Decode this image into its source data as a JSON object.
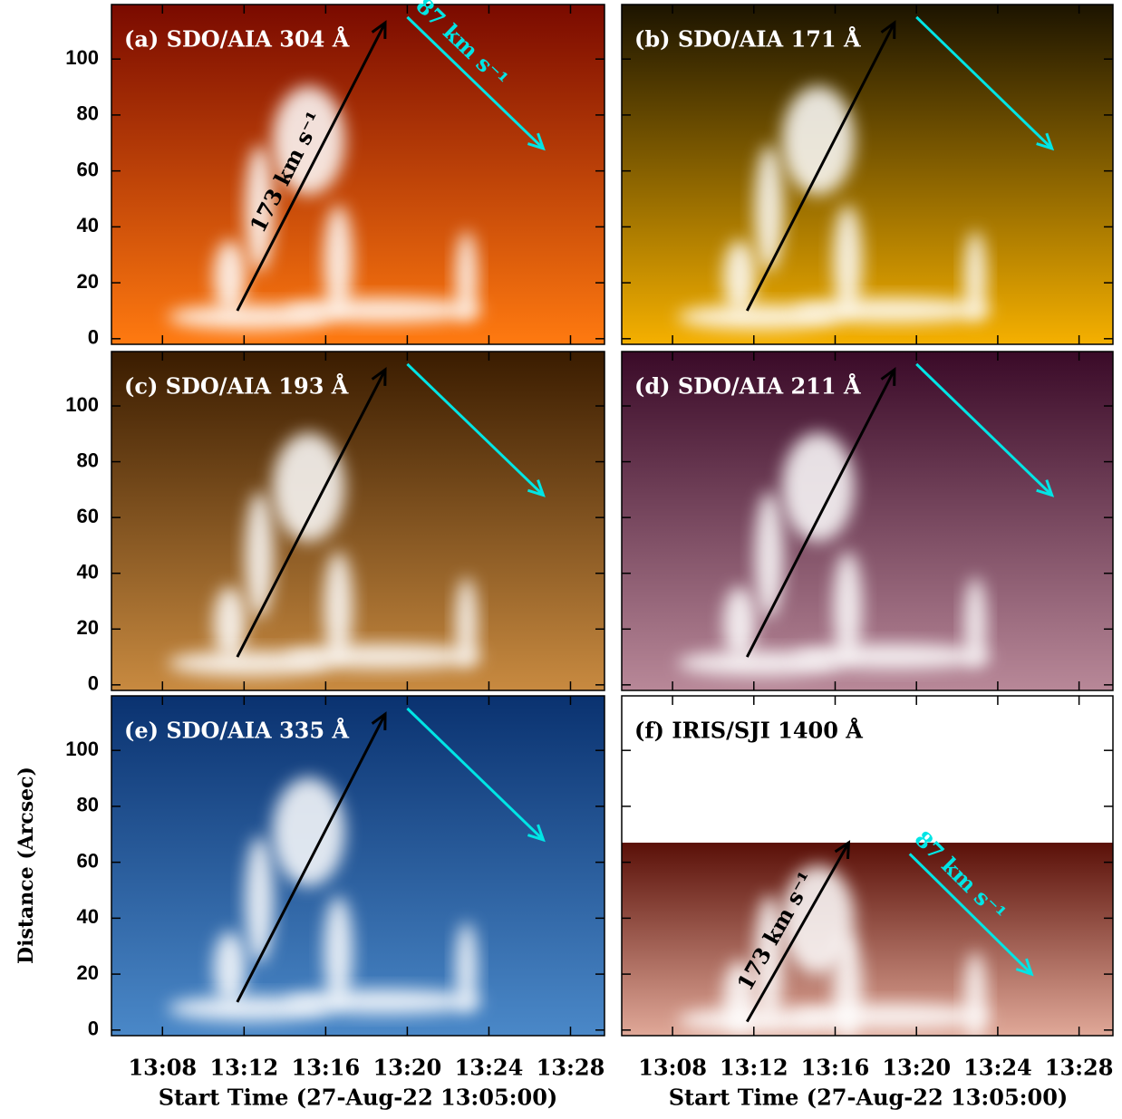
{
  "chart_data": [
    {
      "type": "image",
      "title": "(a) SDO/AIA 304 Å",
      "colors": [
        "#7a0a00",
        "#ff7a10"
      ],
      "xlim": [
        "13:05:30",
        "13:29:40"
      ],
      "ylim": [
        -2,
        119.5
      ],
      "xticks": [
        "13:08",
        "13:12",
        "13:16",
        "13:20",
        "13:24",
        "13:28"
      ],
      "yticks": [
        0,
        20,
        40,
        60,
        80,
        100
      ],
      "arrows": [
        {
          "color": "#000000",
          "from": [
            "13:11:40",
            10
          ],
          "to": [
            "13:18:55",
            113
          ],
          "label": "173 km s⁻¹"
        },
        {
          "color": "#00e5e5",
          "from": [
            "13:20:00",
            115
          ],
          "to": [
            "13:26:40",
            68
          ],
          "label": "87 km s⁻¹"
        }
      ]
    },
    {
      "type": "image",
      "title": "(b) SDO/AIA 171 Å",
      "colors": [
        "#1c1400",
        "#f5b000"
      ],
      "xlim": [
        "13:05:30",
        "13:29:40"
      ],
      "ylim": [
        -2,
        119.5
      ],
      "xticks": [
        "13:08",
        "13:12",
        "13:16",
        "13:20",
        "13:24",
        "13:28"
      ],
      "yticks": [
        0,
        20,
        40,
        60,
        80,
        100
      ],
      "arrows": [
        {
          "color": "#000000",
          "from": [
            "13:11:40",
            10
          ],
          "to": [
            "13:18:55",
            113
          ]
        },
        {
          "color": "#00e5e5",
          "from": [
            "13:20:00",
            115
          ],
          "to": [
            "13:26:40",
            68
          ]
        }
      ]
    },
    {
      "type": "image",
      "title": "(c) SDO/AIA 193 Å",
      "colors": [
        "#3a1c00",
        "#c88a40"
      ],
      "xlim": [
        "13:05:30",
        "13:29:40"
      ],
      "ylim": [
        -2,
        119.5
      ],
      "xticks": [
        "13:08",
        "13:12",
        "13:16",
        "13:20",
        "13:24",
        "13:28"
      ],
      "yticks": [
        0,
        20,
        40,
        60,
        80,
        100
      ],
      "arrows": [
        {
          "color": "#000000",
          "from": [
            "13:11:40",
            10
          ],
          "to": [
            "13:18:55",
            113
          ]
        },
        {
          "color": "#00e5e5",
          "from": [
            "13:20:00",
            115
          ],
          "to": [
            "13:26:40",
            68
          ]
        }
      ]
    },
    {
      "type": "image",
      "title": "(d) SDO/AIA 211 Å",
      "colors": [
        "#3a0a28",
        "#b88898"
      ],
      "xlim": [
        "13:05:30",
        "13:29:40"
      ],
      "ylim": [
        -2,
        119.5
      ],
      "xticks": [
        "13:08",
        "13:12",
        "13:16",
        "13:20",
        "13:24",
        "13:28"
      ],
      "yticks": [
        0,
        20,
        40,
        60,
        80,
        100
      ],
      "arrows": [
        {
          "color": "#000000",
          "from": [
            "13:11:40",
            10
          ],
          "to": [
            "13:18:55",
            113
          ]
        },
        {
          "color": "#00e5e5",
          "from": [
            "13:20:00",
            115
          ],
          "to": [
            "13:26:40",
            68
          ]
        }
      ]
    },
    {
      "type": "image",
      "title": "(e) SDO/AIA 335 Å",
      "colors": [
        "#0a3270",
        "#4a88c8"
      ],
      "xlim": [
        "13:05:30",
        "13:29:40"
      ],
      "ylim": [
        -2,
        119.5
      ],
      "xticks": [
        "13:08",
        "13:12",
        "13:16",
        "13:20",
        "13:24",
        "13:28"
      ],
      "yticks": [
        0,
        20,
        40,
        60,
        80,
        100
      ],
      "arrows": [
        {
          "color": "#000000",
          "from": [
            "13:11:40",
            10
          ],
          "to": [
            "13:18:55",
            113
          ]
        },
        {
          "color": "#00e5e5",
          "from": [
            "13:20:00",
            115
          ],
          "to": [
            "13:26:40",
            68
          ]
        }
      ]
    },
    {
      "type": "image",
      "title": "(f) IRIS/SJI 1400 Å",
      "colors": [
        "#5a1008",
        "#e0a898"
      ],
      "extent": [
        -2,
        67
      ],
      "xlim": [
        "13:05:30",
        "13:29:40"
      ],
      "ylim": [
        -2,
        119.5
      ],
      "xticks": [
        "13:08",
        "13:12",
        "13:16",
        "13:20",
        "13:24",
        "13:28"
      ],
      "yticks": [
        0,
        20,
        40,
        60,
        80,
        100
      ],
      "arrows": [
        {
          "color": "#000000",
          "from": [
            "13:11:40",
            3
          ],
          "to": [
            "13:16:40",
            67
          ],
          "label": "173 km s⁻¹"
        },
        {
          "color": "#00e5e5",
          "from": [
            "13:19:40",
            63
          ],
          "to": [
            "13:25:40",
            20
          ],
          "label": "87 km s⁻¹"
        }
      ]
    }
  ],
  "ylabel": "Distance (Arcsec)",
  "xlabel": "Start Time (27-Aug-22 13:05:00)"
}
